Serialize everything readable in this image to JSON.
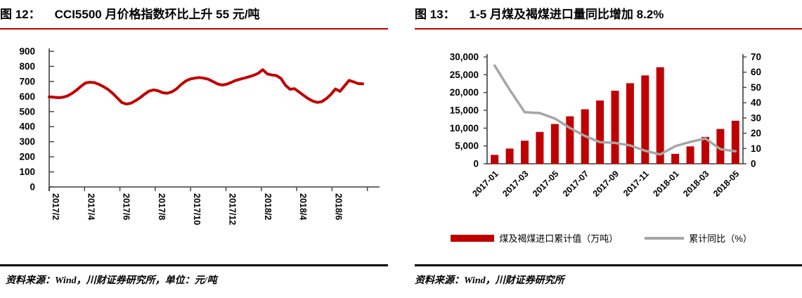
{
  "colors": {
    "accent_red": "#C00000",
    "gray_line": "#A6A6A6",
    "axis": "#3F3F3F",
    "title_rule": "#C00000",
    "footer_rule": "#000000"
  },
  "panels": [
    {
      "title_prefix": "图 12：",
      "title": "CCI5500 月价格指数环比上升 55 元/吨",
      "source_note": "资料来源：Wind，川财证券研究所，单位：元/吨"
    },
    {
      "title_prefix": "图 13：",
      "title": "1-5 月煤及褐煤进口量同比增加 8.2%",
      "source_note": "资料来源：Wind，川财证券研究所"
    }
  ],
  "chart_data": [
    {
      "type": "line",
      "title": "CCI5500 月价格指数",
      "xlabel": "",
      "ylabel": "元/吨",
      "ylim": [
        0,
        900
      ],
      "ytick_step": 100,
      "y_tick_labels": [
        "0",
        "100",
        "200",
        "300",
        "400",
        "500",
        "600",
        "700",
        "800",
        "900"
      ],
      "x_tick_labels": [
        "2017/2",
        "2017/4",
        "2017/6",
        "2017/8",
        "2017/10",
        "2017/12",
        "2018/2",
        "2018/4",
        "2018/6"
      ],
      "x_tick_label_rotation_deg": 90,
      "grid": false,
      "series_color": "#C00000",
      "values": [
        598,
        595,
        592,
        595,
        604,
        620,
        642,
        668,
        690,
        695,
        692,
        680,
        665,
        646,
        620,
        590,
        560,
        550,
        556,
        572,
        592,
        616,
        636,
        644,
        638,
        625,
        622,
        631,
        650,
        678,
        702,
        716,
        722,
        726,
        722,
        715,
        700,
        684,
        676,
        681,
        693,
        706,
        715,
        723,
        731,
        741,
        754,
        778,
        750,
        743,
        739,
        720,
        675,
        648,
        652,
        630,
        607,
        586,
        570,
        561,
        566,
        586,
        614,
        650,
        634,
        670,
        707,
        697,
        686,
        684
      ]
    },
    {
      "type": "combo_bar_line",
      "title": "煤及褐煤进口",
      "categories": [
        "2017-01",
        "2017-02",
        "2017-03",
        "2017-04",
        "2017-05",
        "2017-06",
        "2017-07",
        "2017-08",
        "2017-09",
        "2017-10",
        "2017-11",
        "2017-12",
        "2018-01",
        "2018-02",
        "2018-03",
        "2018-04",
        "2018-05"
      ],
      "x_tick_labels": [
        "2017-01",
        "2017-03",
        "2017-05",
        "2017-07",
        "2017-09",
        "2017-11",
        "2018-01",
        "2018-03",
        "2018-05"
      ],
      "x_tick_label_rotation_deg": 45,
      "left_ylim": [
        0,
        30000
      ],
      "left_tick_step": 5000,
      "left_y_tick_labels": [
        "0",
        "5,000",
        "10,000",
        "15,000",
        "20,000",
        "25,000",
        "30,000"
      ],
      "right_ylim": [
        0,
        70
      ],
      "right_tick_step": 10,
      "right_y_tick_labels": [
        "0",
        "10",
        "20",
        "30",
        "40",
        "50",
        "60",
        "70"
      ],
      "grid": false,
      "legend_position": "bottom",
      "series": [
        {
          "name": "煤及褐煤进口累计值（万吨）",
          "type": "bar",
          "axis": "left",
          "color": "#C00000",
          "values": [
            2491,
            4261,
            6471,
            8949,
            11168,
            13326,
            15297,
            17771,
            20501,
            22613,
            24816,
            27090,
            2781,
            4871,
            7541,
            9768,
            12072
          ]
        },
        {
          "name": "累计同比（%）",
          "type": "line",
          "axis": "right",
          "color": "#A6A6A6",
          "values": [
            64.4,
            48.5,
            33.8,
            33.2,
            29.6,
            23.5,
            18.2,
            14.2,
            13.7,
            12.0,
            8.5,
            6.1,
            11.5,
            14.3,
            16.6,
            9.6,
            8.2
          ]
        }
      ]
    }
  ]
}
